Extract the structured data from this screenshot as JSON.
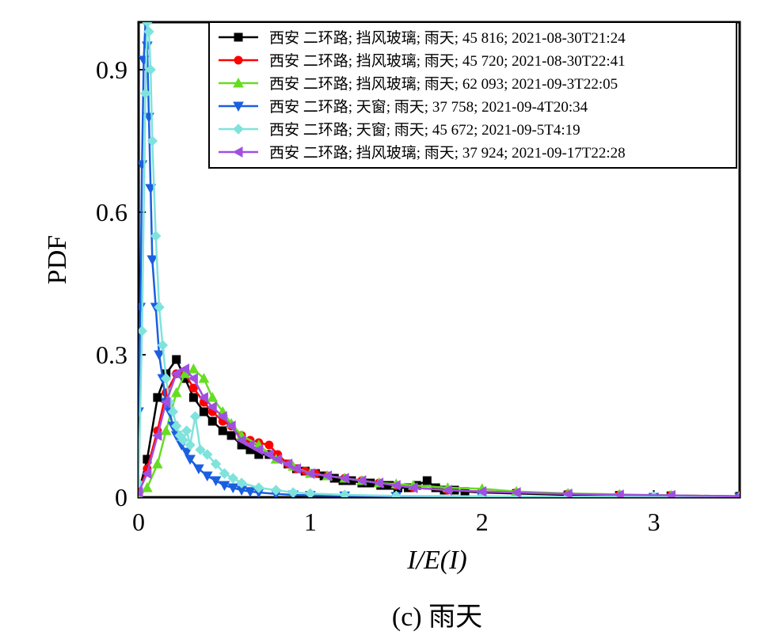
{
  "chart_data": {
    "type": "line",
    "caption": "(c) 雨天",
    "xlabel": "I/E(I)",
    "ylabel": "PDF",
    "xlim": [
      0,
      3.5
    ],
    "ylim": [
      0,
      1.0
    ],
    "xticks": [
      0,
      1,
      2,
      3
    ],
    "xtick_labels": [
      "0",
      "1",
      "2",
      "3"
    ],
    "yticks": [
      0,
      0.3,
      0.6,
      0.9
    ],
    "ytick_labels": [
      "0",
      "0.3",
      "0.6",
      "0.9"
    ],
    "grid": false,
    "legend_position": "top-right",
    "series": [
      {
        "name": "西安 二环路; 挡风玻璃; 雨天; 45 816; 2021-08-30T21:24",
        "color": "#000000",
        "marker": "square",
        "x": [
          0,
          0.05,
          0.11,
          0.16,
          0.22,
          0.27,
          0.32,
          0.38,
          0.43,
          0.49,
          0.54,
          0.6,
          0.65,
          0.7,
          0.76,
          0.81,
          0.87,
          0.92,
          0.97,
          1.03,
          1.08,
          1.14,
          1.19,
          1.24,
          1.3,
          1.35,
          1.41,
          1.46,
          1.51,
          1.57,
          1.62,
          1.68,
          1.73,
          1.78,
          1.84,
          1.9,
          2.0,
          2.2,
          2.5,
          2.8,
          3.1,
          3.5
        ],
        "y": [
          0.01,
          0.08,
          0.21,
          0.26,
          0.29,
          0.25,
          0.21,
          0.18,
          0.16,
          0.14,
          0.13,
          0.11,
          0.1,
          0.09,
          0.09,
          0.08,
          0.07,
          0.06,
          0.055,
          0.05,
          0.045,
          0.04,
          0.035,
          0.035,
          0.03,
          0.03,
          0.025,
          0.025,
          0.02,
          0.02,
          0.025,
          0.035,
          0.02,
          0.015,
          0.015,
          0.012,
          0.01,
          0.008,
          0.005,
          0.004,
          0.003,
          0.002
        ]
      },
      {
        "name": "西安 二环路; 挡风玻璃; 雨天; 45 720; 2021-08-30T22:41",
        "color": "#ff0000",
        "marker": "circle",
        "x": [
          0,
          0.05,
          0.11,
          0.16,
          0.22,
          0.27,
          0.32,
          0.38,
          0.43,
          0.49,
          0.54,
          0.6,
          0.65,
          0.7,
          0.76,
          0.81,
          0.87,
          0.92,
          0.97,
          1.03,
          1.1,
          1.2,
          1.3,
          1.4,
          1.5,
          1.6,
          1.8,
          2.0,
          2.2,
          2.5,
          2.8,
          3.1,
          3.5
        ],
        "y": [
          0.01,
          0.06,
          0.14,
          0.22,
          0.26,
          0.26,
          0.23,
          0.2,
          0.18,
          0.16,
          0.15,
          0.13,
          0.12,
          0.115,
          0.11,
          0.09,
          0.07,
          0.06,
          0.055,
          0.05,
          0.045,
          0.04,
          0.035,
          0.03,
          0.025,
          0.02,
          0.015,
          0.012,
          0.01,
          0.007,
          0.005,
          0.004,
          0.002
        ]
      },
      {
        "name": "西安 二环路; 挡风玻璃; 雨天; 62 093; 2021-09-3T22:05",
        "color": "#66dd22",
        "marker": "triangle-up",
        "x": [
          0,
          0.05,
          0.11,
          0.16,
          0.22,
          0.27,
          0.32,
          0.38,
          0.43,
          0.49,
          0.54,
          0.6,
          0.7,
          0.8,
          0.9,
          1.0,
          1.1,
          1.2,
          1.3,
          1.4,
          1.5,
          1.6,
          1.8,
          2.0,
          2.2,
          2.5,
          2.8,
          3.1,
          3.5
        ],
        "y": [
          0,
          0.02,
          0.07,
          0.14,
          0.22,
          0.26,
          0.27,
          0.25,
          0.21,
          0.18,
          0.155,
          0.13,
          0.11,
          0.08,
          0.065,
          0.05,
          0.045,
          0.04,
          0.035,
          0.03,
          0.028,
          0.025,
          0.02,
          0.018,
          0.012,
          0.008,
          0.006,
          0.004,
          0.002
        ]
      },
      {
        "name": "西安 二环路; 天窗; 雨天; 37 758; 2021-09-4T20:34",
        "color": "#1a5fe0",
        "marker": "triangle-down",
        "x": [
          0,
          0.01,
          0.02,
          0.03,
          0.04,
          0.05,
          0.06,
          0.07,
          0.08,
          0.1,
          0.12,
          0.14,
          0.16,
          0.18,
          0.2,
          0.22,
          0.25,
          0.28,
          0.3,
          0.35,
          0.4,
          0.45,
          0.5,
          0.55,
          0.6,
          0.65,
          0.7,
          0.8,
          0.9,
          1.0,
          1.2,
          1.5,
          2.0,
          2.5,
          3.0,
          3.5
        ],
        "y": [
          0.18,
          0.4,
          0.7,
          0.92,
          1.0,
          0.95,
          0.8,
          0.65,
          0.5,
          0.4,
          0.3,
          0.25,
          0.2,
          0.18,
          0.15,
          0.13,
          0.11,
          0.095,
          0.08,
          0.06,
          0.045,
          0.035,
          0.025,
          0.02,
          0.015,
          0.012,
          0.01,
          0.007,
          0.005,
          0.004,
          0.003,
          0.002,
          0.001,
          0.001,
          0.0,
          0.0
        ]
      },
      {
        "name": "西安 二环路; 天窗; 雨天; 45 672; 2021-09-5T4:19",
        "color": "#7fe3dc",
        "marker": "diamond",
        "x": [
          0,
          0.02,
          0.04,
          0.05,
          0.06,
          0.07,
          0.08,
          0.1,
          0.12,
          0.14,
          0.16,
          0.18,
          0.2,
          0.22,
          0.24,
          0.26,
          0.28,
          0.3,
          0.33,
          0.36,
          0.4,
          0.45,
          0.5,
          0.55,
          0.6,
          0.7,
          0.8,
          0.9,
          1.0,
          1.2,
          1.5,
          2.0,
          2.5,
          3.0,
          3.5
        ],
        "y": [
          0.03,
          0.35,
          0.85,
          1.0,
          0.98,
          0.9,
          0.75,
          0.55,
          0.4,
          0.32,
          0.25,
          0.2,
          0.18,
          0.15,
          0.13,
          0.12,
          0.14,
          0.11,
          0.17,
          0.1,
          0.09,
          0.07,
          0.05,
          0.04,
          0.03,
          0.02,
          0.015,
          0.01,
          0.008,
          0.005,
          0.003,
          0.002,
          0.001,
          0.001,
          0.0
        ]
      },
      {
        "name": "西安 二环路; 挡风玻璃; 雨天; 37 924; 2021-09-17T22:28",
        "color": "#a050e0",
        "marker": "triangle-left",
        "x": [
          0,
          0.05,
          0.11,
          0.16,
          0.22,
          0.27,
          0.32,
          0.38,
          0.43,
          0.49,
          0.54,
          0.6,
          0.65,
          0.7,
          0.76,
          0.81,
          0.87,
          0.92,
          1.0,
          1.1,
          1.2,
          1.3,
          1.4,
          1.5,
          1.6,
          1.8,
          2.0,
          2.2,
          2.5,
          2.8,
          3.1,
          3.5
        ],
        "y": [
          0.01,
          0.05,
          0.13,
          0.2,
          0.26,
          0.27,
          0.25,
          0.21,
          0.19,
          0.17,
          0.15,
          0.12,
          0.11,
          0.1,
          0.09,
          0.08,
          0.07,
          0.06,
          0.05,
          0.045,
          0.04,
          0.035,
          0.03,
          0.025,
          0.02,
          0.015,
          0.012,
          0.01,
          0.007,
          0.005,
          0.004,
          0.002
        ]
      }
    ]
  }
}
